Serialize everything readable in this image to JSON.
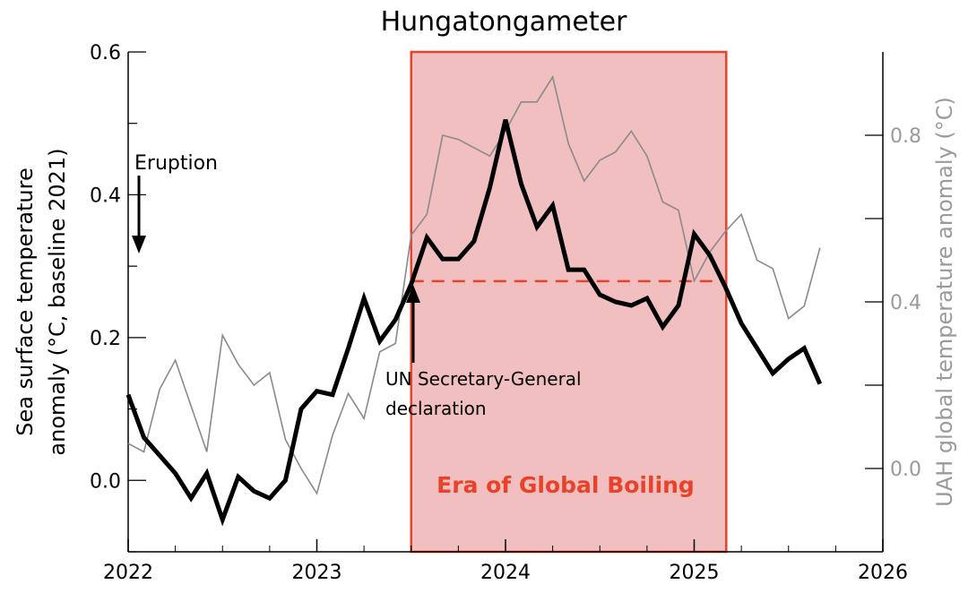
{
  "chart_data": {
    "type": "line",
    "title": "Hungatongameter",
    "xlabel": "",
    "ylabel_left": "Sea surface temperature anomaly (°C, baseline 2021)",
    "ylabel_left_lines": [
      "Sea surface temperature",
      "anomaly (°C, baseline 2021)"
    ],
    "ylabel_right": "UAH global temperature anomaly (°C)",
    "xlim": [
      2022,
      2026
    ],
    "ylim_left": [
      -0.1,
      0.6
    ],
    "ylim_right": [
      -0.2,
      1.0
    ],
    "x_ticks": [
      "2022",
      "2023",
      "2024",
      "2025",
      "2026"
    ],
    "y_ticks_left": [
      "0.0",
      "0.2",
      "0.4",
      "0.6"
    ],
    "y_ticks_right": [
      "0.0",
      "0.4",
      "0.8"
    ],
    "grid": false,
    "x_start": 2022.0,
    "x_step_months": 1,
    "series": [
      {
        "name": "Sea surface temperature anomaly",
        "axis": "left",
        "color": "#000000",
        "values": [
          0.12,
          0.06,
          0.035,
          0.01,
          -0.025,
          0.01,
          -0.055,
          0.005,
          -0.015,
          -0.025,
          0.0,
          0.1,
          0.125,
          0.12,
          0.185,
          0.255,
          0.195,
          0.225,
          0.275,
          0.34,
          0.31,
          0.31,
          0.335,
          0.41,
          0.505,
          0.415,
          0.355,
          0.385,
          0.295,
          0.295,
          0.26,
          0.25,
          0.245,
          0.255,
          0.215,
          0.245,
          0.345,
          0.315,
          0.27,
          0.22,
          0.185,
          0.15,
          0.17,
          0.185,
          0.135
        ]
      },
      {
        "name": "UAH global temperature anomaly",
        "axis": "right",
        "color": "#8a8a8a",
        "values": [
          0.06,
          0.04,
          0.19,
          0.26,
          0.15,
          0.04,
          0.32,
          0.25,
          0.2,
          0.23,
          0.07,
          0.0,
          -0.06,
          0.08,
          0.18,
          0.12,
          0.28,
          0.3,
          0.56,
          0.61,
          0.8,
          0.79,
          0.77,
          0.75,
          0.81,
          0.88,
          0.88,
          0.94,
          0.78,
          0.69,
          0.74,
          0.76,
          0.81,
          0.75,
          0.64,
          0.62,
          0.45,
          0.52,
          0.57,
          0.61,
          0.5,
          0.48,
          0.36,
          0.39,
          0.53
        ]
      }
    ],
    "shaded_region": {
      "label": "Era of Global Boiling",
      "x_start": 2023.5,
      "x_end": 2025.17,
      "color": "#f2bfc0",
      "edge_color": "#e8422a"
    },
    "reference_line": {
      "axis": "left",
      "value": 0.279,
      "x_start": 2023.5,
      "x_end": 2025.17,
      "style": "dashed",
      "color": "#e8422a"
    },
    "annotations": [
      {
        "text": "Eruption",
        "x": 2022.04,
        "arrow": "down"
      },
      {
        "text_lines": [
          "UN Secretary-General",
          "declaration"
        ],
        "x": 2023.5,
        "arrow": "up"
      }
    ]
  }
}
